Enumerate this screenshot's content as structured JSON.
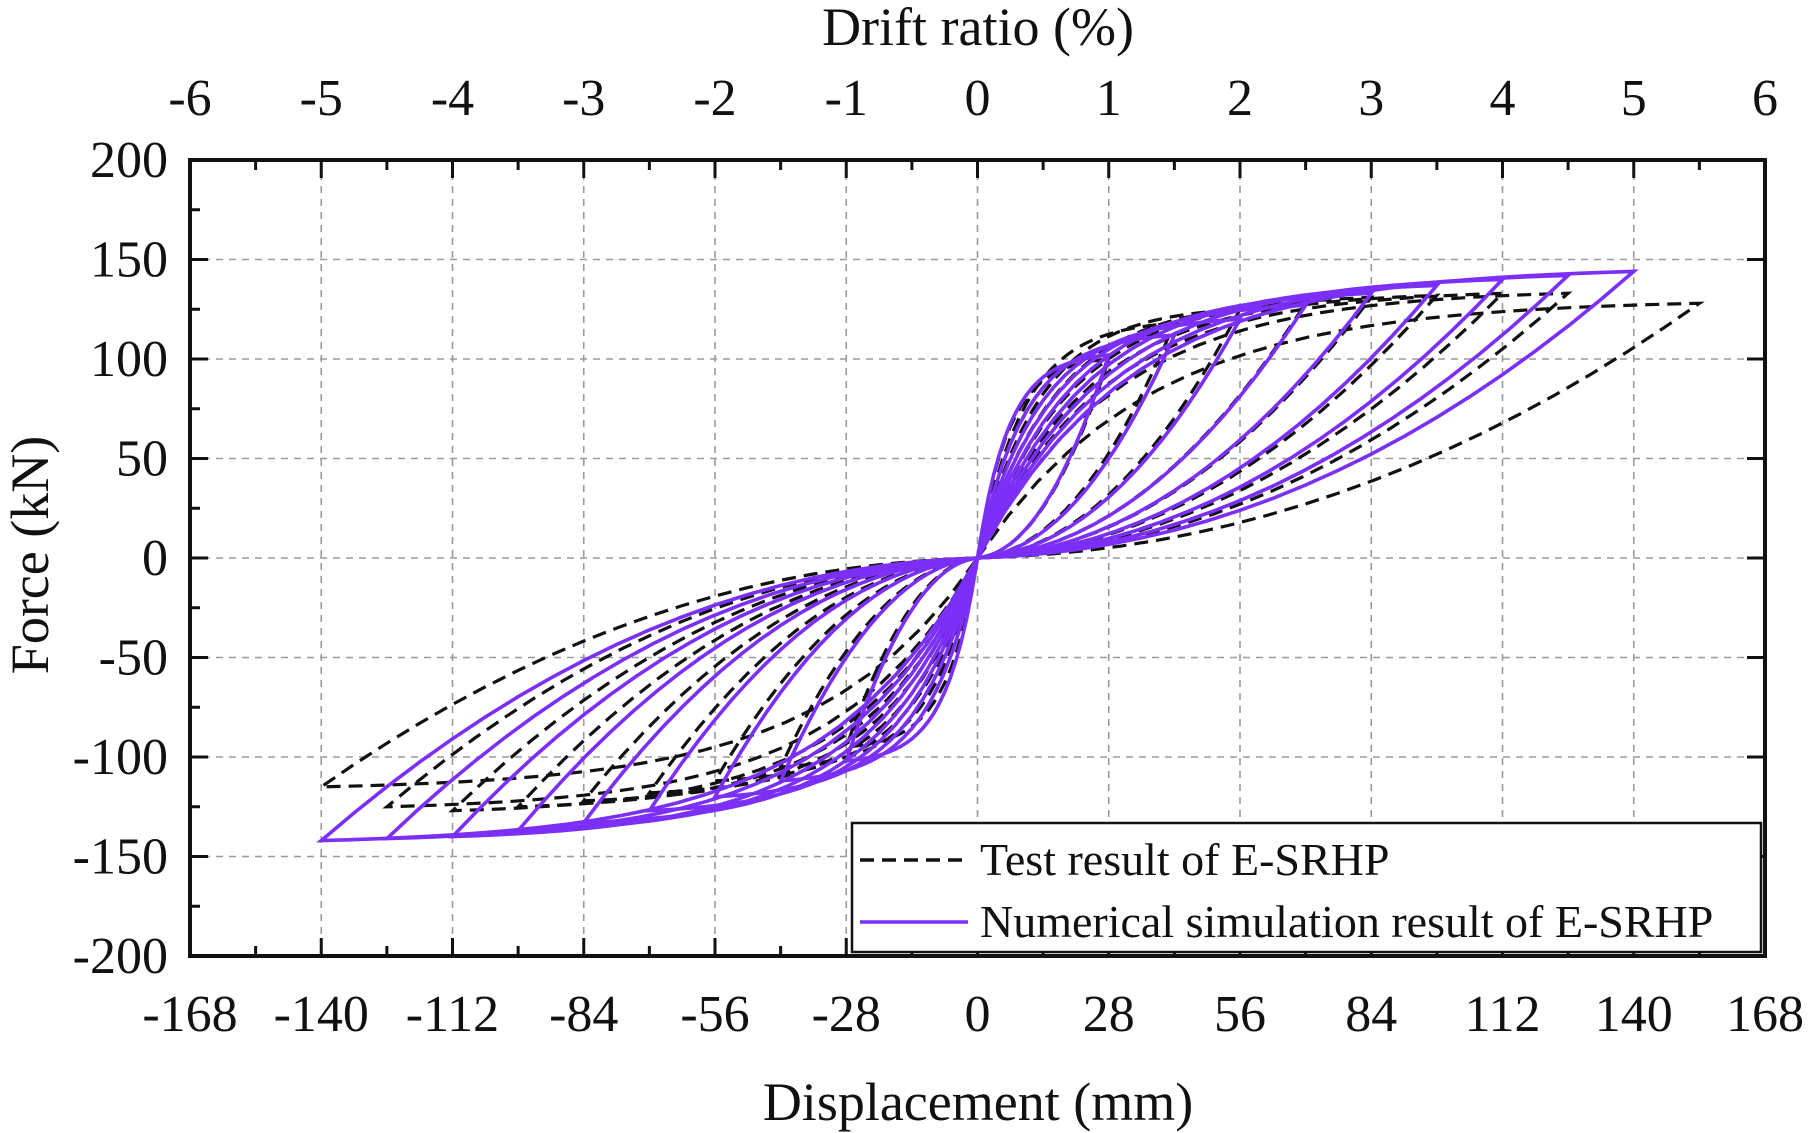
{
  "chart_data": {
    "type": "line",
    "top_axis": {
      "label": "Drift ratio (%)",
      "ticks": [
        "-6",
        "-5",
        "-4",
        "-3",
        "-2",
        "-1",
        "0",
        "1",
        "2",
        "3",
        "4",
        "5",
        "6"
      ],
      "range": [
        -6,
        6
      ]
    },
    "xlabel": "Displacement (mm)",
    "ylabel": "Force (kN)",
    "xlim": [
      -168,
      168
    ],
    "ylim": [
      -200,
      200
    ],
    "x_ticks": [
      "-168",
      "-140",
      "-112",
      "-84",
      "-56",
      "-28",
      "0",
      "28",
      "56",
      "84",
      "112",
      "140",
      "168"
    ],
    "y_ticks": [
      "200",
      "150",
      "100",
      "50",
      "0",
      "-50",
      "-100",
      "-150",
      "-200"
    ],
    "grid": true,
    "legend_position": "bottom-right",
    "series": [
      {
        "name": "Test result of E-SRHP",
        "style": "dashed",
        "color": "#111111",
        "loops": [
          {
            "amp_pos": 28,
            "peak_pos": 100,
            "amp_neg": -28,
            "peak_neg": -95
          },
          {
            "amp_pos": 42,
            "peak_pos": 118,
            "amp_neg": -42,
            "peak_neg": -105
          },
          {
            "amp_pos": 56,
            "peak_pos": 125,
            "amp_neg": -56,
            "peak_neg": -112
          },
          {
            "amp_pos": 70,
            "peak_pos": 128,
            "amp_neg": -70,
            "peak_neg": -118
          },
          {
            "amp_pos": 84,
            "peak_pos": 131,
            "amp_neg": -84,
            "peak_neg": -122
          },
          {
            "amp_pos": 98,
            "peak_pos": 132,
            "amp_neg": -98,
            "peak_neg": -125
          },
          {
            "amp_pos": 112,
            "peak_pos": 133,
            "amp_neg": -112,
            "peak_neg": -127
          },
          {
            "amp_pos": 126,
            "peak_pos": 133,
            "amp_neg": -126,
            "peak_neg": -125
          },
          {
            "amp_pos": 154,
            "peak_pos": 128,
            "amp_neg": -140,
            "peak_neg": -115
          }
        ]
      },
      {
        "name": "Numerical simulation result of E-SRHP",
        "style": "solid",
        "color": "#7B2FF7",
        "loops": [
          {
            "amp_pos": 28,
            "peak_pos": 102,
            "amp_neg": -28,
            "peak_neg": -102
          },
          {
            "amp_pos": 42,
            "peak_pos": 112,
            "amp_neg": -42,
            "peak_neg": -112
          },
          {
            "amp_pos": 56,
            "peak_pos": 120,
            "amp_neg": -56,
            "peak_neg": -120
          },
          {
            "amp_pos": 70,
            "peak_pos": 127,
            "amp_neg": -70,
            "peak_neg": -127
          },
          {
            "amp_pos": 84,
            "peak_pos": 133,
            "amp_neg": -84,
            "peak_neg": -133
          },
          {
            "amp_pos": 98,
            "peak_pos": 137,
            "amp_neg": -98,
            "peak_neg": -137
          },
          {
            "amp_pos": 112,
            "peak_pos": 140,
            "amp_neg": -112,
            "peak_neg": -140
          },
          {
            "amp_pos": 126,
            "peak_pos": 142,
            "amp_neg": -126,
            "peak_neg": -141
          },
          {
            "amp_pos": 140,
            "peak_pos": 144,
            "amp_neg": -140,
            "peak_neg": -142
          }
        ]
      }
    ]
  }
}
